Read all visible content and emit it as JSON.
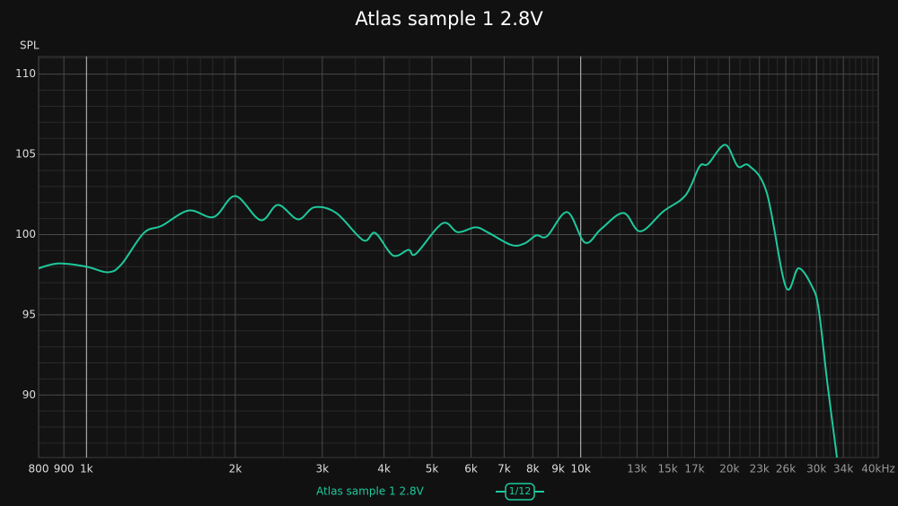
{
  "chart_data": {
    "type": "line",
    "title": "Atlas sample 1 2.8V",
    "y_label": "SPL",
    "log_x": true,
    "grid": true,
    "xlim": [
      800,
      40000
    ],
    "ylim": [
      86.1,
      111.1
    ],
    "xticks": [
      800,
      900,
      {
        "value": 1000,
        "label": "1k"
      },
      {
        "value": 2000,
        "label": "2k"
      },
      {
        "value": 3000,
        "label": "3k"
      },
      {
        "value": 4000,
        "label": "4k"
      },
      {
        "value": 5000,
        "label": "5k"
      },
      {
        "value": 6000,
        "label": "6k"
      },
      {
        "value": 7000,
        "label": "7k"
      },
      {
        "value": 8000,
        "label": "8k"
      },
      {
        "value": 9000,
        "label": "9k"
      },
      {
        "value": 10000,
        "label": "10k"
      },
      {
        "value": 13000,
        "label": "13k"
      },
      {
        "value": 15000,
        "label": "15k"
      },
      {
        "value": 17000,
        "label": "17k"
      },
      {
        "value": 20000,
        "label": "20k"
      },
      {
        "value": 23000,
        "label": "23k"
      },
      {
        "value": 26000,
        "label": "26k"
      },
      {
        "value": 30000,
        "label": "30k"
      },
      {
        "value": 34000,
        "label": "34k"
      },
      {
        "value": 40000,
        "label": "40kHz"
      }
    ],
    "yticks": [
      90,
      95,
      100,
      105,
      110
    ],
    "xminor": [
      1100,
      1200,
      1300,
      1400,
      1500,
      1600,
      1700,
      1800,
      1900,
      2500,
      3500,
      4500,
      11000,
      12000,
      14000,
      16000,
      18000,
      19000,
      21000,
      22000,
      24000,
      25000,
      27000,
      28000,
      29000,
      31000,
      32000,
      33000,
      35000,
      36000,
      37000,
      38000,
      39000
    ],
    "yminor": [
      87,
      88,
      89,
      91,
      92,
      93,
      94,
      96,
      97,
      98,
      99,
      101,
      102,
      103,
      104,
      106,
      107,
      108,
      109,
      111
    ],
    "xstrong": [
      1000,
      10000
    ],
    "smoothing": "1/12",
    "series": [
      {
        "name": "Atlas sample 1 2.8V",
        "color": "#1ec99b",
        "x": [
          800,
          878,
          1000,
          1105,
          1177,
          1306,
          1420,
          1610,
          1810,
          2000,
          2250,
          2440,
          2680,
          2890,
          3200,
          3630,
          3840,
          4170,
          4480,
          4640,
          5250,
          5640,
          6130,
          6520,
          7240,
          7700,
          8130,
          8550,
          9390,
          10200,
          11000,
          12200,
          13200,
          14700,
          16300,
          17400,
          18100,
          19600,
          20800,
          21900,
          23800,
          26000,
          27600,
          29400,
          30300,
          31600,
          33000
        ],
        "values": [
          97.9,
          98.2,
          98.0,
          97.65,
          98.15,
          100.1,
          100.55,
          101.5,
          101.1,
          102.4,
          100.9,
          101.85,
          100.95,
          101.7,
          101.35,
          99.65,
          100.1,
          98.7,
          99.05,
          98.8,
          100.7,
          100.15,
          100.45,
          100.1,
          99.35,
          99.45,
          99.95,
          99.9,
          101.4,
          99.5,
          100.35,
          101.35,
          100.2,
          101.45,
          102.45,
          104.25,
          104.4,
          105.6,
          104.25,
          104.3,
          102.6,
          96.75,
          97.9,
          96.75,
          95.35,
          90.6,
          86.1
        ]
      }
    ]
  }
}
